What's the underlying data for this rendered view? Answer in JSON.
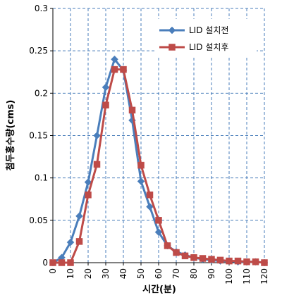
{
  "chart_data": {
    "type": "line",
    "title": "",
    "xlabel": "시간(분)",
    "ylabel": "첨두홍수량(cms)",
    "xlim": [
      0,
      120
    ],
    "ylim": [
      0,
      0.3
    ],
    "x_ticks": [
      "0",
      "10",
      "20",
      "30",
      "40",
      "50",
      "60",
      "70",
      "80",
      "90",
      "100",
      "110",
      "120"
    ],
    "y_ticks": [
      "0",
      "0.05",
      "0.1",
      "0.15",
      "0.2",
      "0.25",
      "0.3"
    ],
    "x": [
      0,
      5,
      10,
      15,
      20,
      25,
      30,
      35,
      40,
      45,
      50,
      55,
      60,
      65,
      70,
      75,
      80,
      85,
      90,
      95,
      100,
      105,
      110,
      115,
      120
    ],
    "series": [
      {
        "name": "LID 설치전",
        "color": "#4a7ebb",
        "marker": "diamond",
        "values": [
          0,
          0.006,
          0.024,
          0.055,
          0.095,
          0.15,
          0.207,
          0.24,
          0.227,
          0.168,
          0.096,
          0.066,
          0.036,
          0.02,
          0.013,
          0.009,
          0.006,
          0.004,
          0.003,
          0.002,
          0.002,
          0.001,
          0.001,
          0.001,
          0
        ]
      },
      {
        "name": "LID 설치후",
        "color": "#be4b48",
        "marker": "square",
        "values": [
          0,
          0,
          0,
          0.025,
          0.08,
          0.116,
          0.186,
          0.228,
          0.228,
          0.18,
          0.115,
          0.08,
          0.05,
          0.02,
          0.012,
          0.008,
          0.006,
          0.005,
          0.004,
          0.003,
          0.002,
          0.002,
          0.001,
          0.001,
          0
        ]
      }
    ],
    "grid": {
      "x": true,
      "y": true,
      "style": "dashed"
    },
    "legend_position": "top-right"
  }
}
